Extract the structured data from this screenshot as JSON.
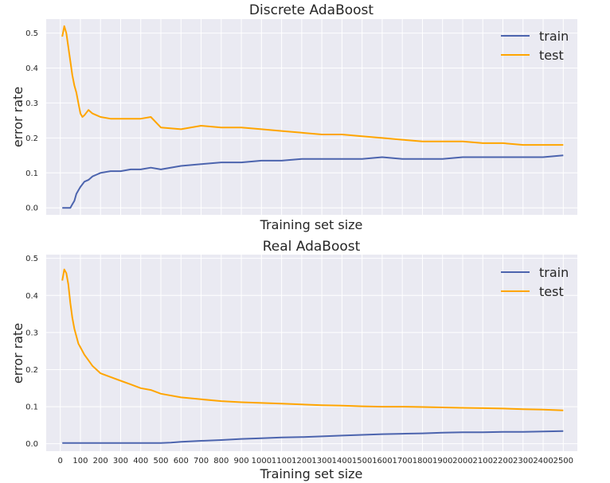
{
  "figure": {
    "colors": {
      "background": "#eaeaf2",
      "grid": "#ffffff",
      "train": "#4c64ae",
      "test": "#ffa500"
    }
  },
  "chart_data": [
    {
      "type": "line",
      "title": "Discrete AdaBoost",
      "xlabel": "Training set size",
      "ylabel": "error rate",
      "xlim": [
        -70,
        2570
      ],
      "ylim": [
        -0.02,
        0.54
      ],
      "yticks": [
        0.0,
        0.1,
        0.2,
        0.3,
        0.4,
        0.5
      ],
      "ytick_labels": [
        "0.0",
        "0.1",
        "0.2",
        "0.3",
        "0.4",
        "0.5"
      ],
      "xticks": [
        0,
        100,
        200,
        300,
        400,
        500,
        600,
        700,
        800,
        900,
        1000,
        1100,
        1200,
        1300,
        1400,
        1500,
        1600,
        1700,
        1800,
        1900,
        2000,
        2100,
        2200,
        2300,
        2400,
        2500
      ],
      "show_xtick_labels": false,
      "grid": true,
      "legend": {
        "position": "top-right",
        "entries": [
          "train",
          "test"
        ]
      },
      "series": [
        {
          "name": "train",
          "x": [
            10,
            30,
            50,
            60,
            70,
            80,
            90,
            100,
            120,
            140,
            160,
            180,
            200,
            250,
            300,
            350,
            400,
            450,
            500,
            600,
            700,
            800,
            900,
            1000,
            1100,
            1200,
            1300,
            1400,
            1500,
            1600,
            1700,
            1800,
            1900,
            2000,
            2100,
            2200,
            2300,
            2400,
            2500
          ],
          "values": [
            0.0,
            0.0,
            0.0,
            0.01,
            0.02,
            0.04,
            0.05,
            0.06,
            0.075,
            0.08,
            0.09,
            0.095,
            0.1,
            0.105,
            0.105,
            0.11,
            0.11,
            0.115,
            0.11,
            0.12,
            0.125,
            0.13,
            0.13,
            0.135,
            0.135,
            0.14,
            0.14,
            0.14,
            0.14,
            0.145,
            0.14,
            0.14,
            0.14,
            0.145,
            0.145,
            0.145,
            0.145,
            0.145,
            0.15
          ]
        },
        {
          "name": "test",
          "x": [
            10,
            20,
            30,
            40,
            50,
            60,
            70,
            80,
            90,
            100,
            110,
            120,
            140,
            160,
            180,
            200,
            250,
            300,
            350,
            400,
            450,
            500,
            600,
            700,
            800,
            900,
            1000,
            1100,
            1200,
            1300,
            1400,
            1500,
            1600,
            1700,
            1800,
            1900,
            2000,
            2100,
            2200,
            2300,
            2400,
            2500
          ],
          "values": [
            0.49,
            0.52,
            0.5,
            0.46,
            0.42,
            0.38,
            0.35,
            0.33,
            0.3,
            0.27,
            0.26,
            0.265,
            0.28,
            0.27,
            0.265,
            0.26,
            0.255,
            0.255,
            0.255,
            0.255,
            0.26,
            0.23,
            0.225,
            0.235,
            0.23,
            0.23,
            0.225,
            0.22,
            0.215,
            0.21,
            0.21,
            0.205,
            0.2,
            0.195,
            0.19,
            0.19,
            0.19,
            0.185,
            0.185,
            0.18,
            0.18,
            0.18
          ]
        }
      ]
    },
    {
      "type": "line",
      "title": "Real AdaBoost",
      "xlabel": "Training set size",
      "ylabel": "error rate",
      "xlim": [
        -70,
        2570
      ],
      "ylim": [
        -0.02,
        0.51
      ],
      "yticks": [
        0.0,
        0.1,
        0.2,
        0.3,
        0.4,
        0.5
      ],
      "ytick_labels": [
        "0.0",
        "0.1",
        "0.2",
        "0.3",
        "0.4",
        "0.5"
      ],
      "xticks": [
        0,
        100,
        200,
        300,
        400,
        500,
        600,
        700,
        800,
        900,
        1000,
        1100,
        1200,
        1300,
        1400,
        1500,
        1600,
        1700,
        1800,
        1900,
        2000,
        2100,
        2200,
        2300,
        2400,
        2500
      ],
      "xtick_labels": [
        "0",
        "100",
        "200",
        "300",
        "400",
        "500",
        "600",
        "700",
        "800",
        "900",
        "1000",
        "1100",
        "1200",
        "1300",
        "1400",
        "1500",
        "1600",
        "1700",
        "1800",
        "1900",
        "2000",
        "2100",
        "2200",
        "2300",
        "2400",
        "2500"
      ],
      "show_xtick_labels": true,
      "grid": true,
      "legend": {
        "position": "top-right",
        "entries": [
          "train",
          "test"
        ]
      },
      "series": [
        {
          "name": "train",
          "x": [
            10,
            100,
            200,
            300,
            400,
            500,
            550,
            600,
            700,
            800,
            900,
            1000,
            1100,
            1200,
            1300,
            1400,
            1500,
            1600,
            1700,
            1800,
            1900,
            2000,
            2100,
            2200,
            2300,
            2400,
            2500
          ],
          "values": [
            0.002,
            0.002,
            0.002,
            0.002,
            0.002,
            0.002,
            0.003,
            0.005,
            0.008,
            0.01,
            0.013,
            0.015,
            0.017,
            0.018,
            0.02,
            0.022,
            0.024,
            0.026,
            0.027,
            0.028,
            0.03,
            0.031,
            0.031,
            0.032,
            0.032,
            0.033,
            0.034
          ]
        },
        {
          "name": "test",
          "x": [
            10,
            20,
            30,
            40,
            50,
            60,
            70,
            80,
            90,
            100,
            120,
            140,
            160,
            180,
            200,
            250,
            300,
            350,
            400,
            450,
            500,
            600,
            700,
            800,
            900,
            1000,
            1100,
            1200,
            1300,
            1400,
            1500,
            1600,
            1700,
            1800,
            1900,
            2000,
            2100,
            2200,
            2300,
            2400,
            2500
          ],
          "values": [
            0.44,
            0.47,
            0.46,
            0.43,
            0.38,
            0.34,
            0.31,
            0.29,
            0.27,
            0.26,
            0.24,
            0.225,
            0.21,
            0.2,
            0.19,
            0.18,
            0.17,
            0.16,
            0.15,
            0.145,
            0.135,
            0.125,
            0.12,
            0.115,
            0.112,
            0.11,
            0.108,
            0.106,
            0.104,
            0.103,
            0.101,
            0.1,
            0.1,
            0.099,
            0.098,
            0.097,
            0.096,
            0.095,
            0.093,
            0.092,
            0.09
          ]
        }
      ]
    }
  ]
}
